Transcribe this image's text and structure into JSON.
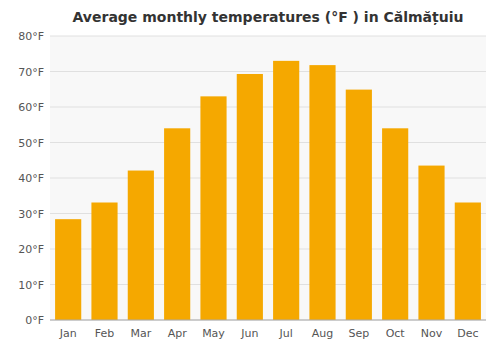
{
  "chart_data": {
    "type": "bar",
    "title": "Average monthly temperatures (°F ) in Călmățuiu",
    "categories": [
      "Jan",
      "Feb",
      "Mar",
      "Apr",
      "May",
      "Jun",
      "Jul",
      "Aug",
      "Sep",
      "Oct",
      "Nov",
      "Dec"
    ],
    "values": [
      28.4,
      33.1,
      42.1,
      54.0,
      63.0,
      69.3,
      73.0,
      71.8,
      64.9,
      54.0,
      43.5,
      33.1
    ],
    "color": "#F5A800",
    "ylim": [
      0,
      80
    ],
    "yticks": [
      {
        "value": 0,
        "label": "0°F"
      },
      {
        "value": 10,
        "label": "10°F"
      },
      {
        "value": 20,
        "label": "20°F"
      },
      {
        "value": 30,
        "label": "30°F"
      },
      {
        "value": 40,
        "label": "40°F"
      },
      {
        "value": 50,
        "label": "50°F"
      },
      {
        "value": 60,
        "label": "60°F"
      },
      {
        "value": 70,
        "label": "70°F"
      },
      {
        "value": 80,
        "label": "80°F"
      }
    ],
    "grid": true
  }
}
